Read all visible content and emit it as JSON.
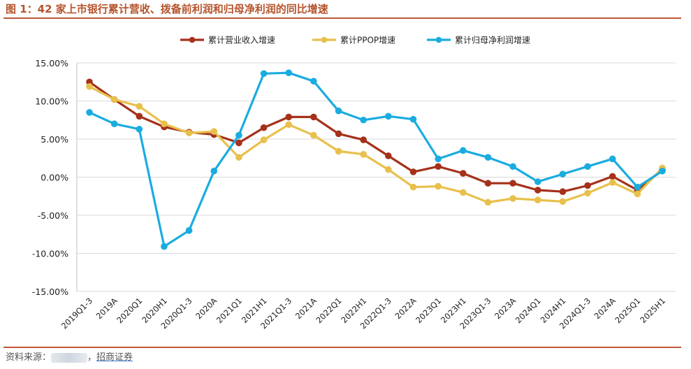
{
  "title": "图 1：42 家上市银行累计营收、拨备前利润和归母净利润的同比增速",
  "source": {
    "prefix": "资料来源：",
    "suffix": "，",
    "broker": "招商证券"
  },
  "chart_data": {
    "type": "line",
    "categories": [
      "2019Q1-3",
      "2019A",
      "2020Q1",
      "2020H1",
      "2020Q1-3",
      "2020A",
      "2021Q1",
      "2021H1",
      "2021Q1-3",
      "2021A",
      "2022Q1",
      "2022H1",
      "2022Q1-3",
      "2022A",
      "2023Q1",
      "2023H1",
      "2023Q1-3",
      "2023A",
      "2024Q1",
      "2024H1",
      "2024Q1-3",
      "2024A",
      "2025Q1",
      "2025H1"
    ],
    "series": [
      {
        "name": "累计营业收入增速",
        "color": "#a5311a",
        "values": [
          12.5,
          10.2,
          8.0,
          6.6,
          5.9,
          5.6,
          4.5,
          6.5,
          7.9,
          7.9,
          5.7,
          4.9,
          2.8,
          0.7,
          1.4,
          0.5,
          -0.8,
          -0.8,
          -1.7,
          -1.9,
          -1.1,
          0.1,
          -1.7,
          1.0
        ]
      },
      {
        "name": "累计PPOP增速",
        "color": "#e8c04c",
        "values": [
          11.9,
          10.2,
          9.3,
          7.0,
          5.8,
          6.0,
          2.6,
          4.9,
          6.9,
          5.5,
          3.4,
          3.0,
          1.0,
          -1.3,
          -1.2,
          -2.0,
          -3.3,
          -2.8,
          -3.0,
          -3.2,
          -2.1,
          -0.7,
          -2.2,
          1.2
        ]
      },
      {
        "name": "累计归母净利润增速",
        "color": "#1aace0",
        "values": [
          8.5,
          7.0,
          6.3,
          -9.1,
          -7.0,
          0.8,
          5.5,
          13.6,
          13.7,
          12.6,
          8.7,
          7.5,
          8.0,
          7.6,
          2.4,
          3.5,
          2.6,
          1.4,
          -0.6,
          0.4,
          1.4,
          2.4,
          -1.3,
          0.8
        ]
      }
    ],
    "ylim": [
      -15,
      15
    ],
    "yticks": [
      "15.00%",
      "10.00%",
      "5.00%",
      "0.00%",
      "-5.00%",
      "-10.00%",
      "-15.00%"
    ],
    "xlabel": "",
    "ylabel": "",
    "grid": true,
    "legend_position": "top-center"
  }
}
